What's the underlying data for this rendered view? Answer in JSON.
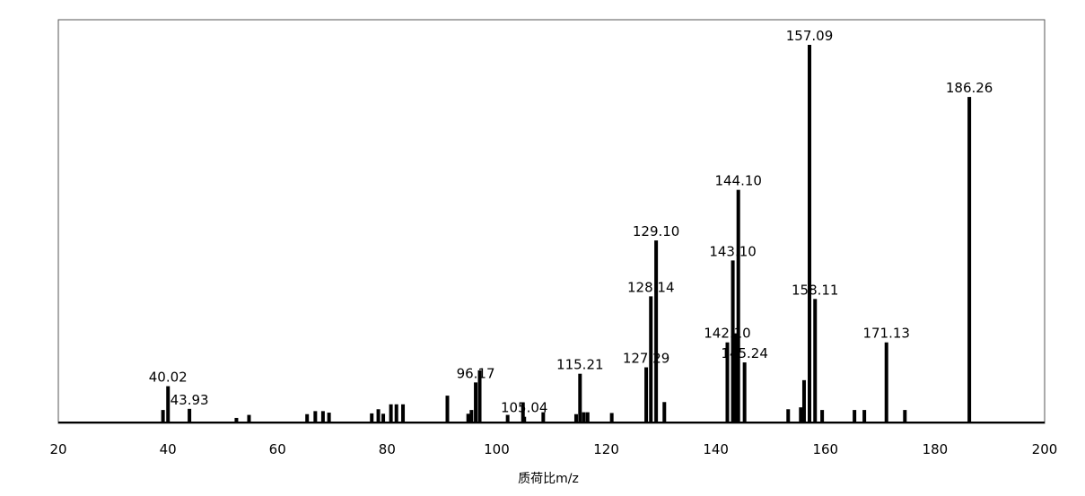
{
  "chart_data": {
    "type": "bar",
    "title": "",
    "xlabel": "质荷比m/z",
    "ylabel": "",
    "xlim": [
      20,
      200
    ],
    "ylim": [
      0,
      100
    ],
    "x_ticks": [
      20,
      40,
      60,
      80,
      100,
      120,
      140,
      160,
      180,
      200
    ],
    "grid": false,
    "legend": "none",
    "bar_color": "#000000",
    "peaks": [
      {
        "mz": 39.1,
        "intensity": 3.3
      },
      {
        "mz": 40.02,
        "intensity": 9.6,
        "label": "40.02"
      },
      {
        "mz": 43.93,
        "intensity": 3.6,
        "label": "43.93"
      },
      {
        "mz": 52.5,
        "intensity": 1.2
      },
      {
        "mz": 54.8,
        "intensity": 2.0
      },
      {
        "mz": 65.4,
        "intensity": 2.2
      },
      {
        "mz": 66.9,
        "intensity": 3.0
      },
      {
        "mz": 68.3,
        "intensity": 3.0
      },
      {
        "mz": 69.4,
        "intensity": 2.6
      },
      {
        "mz": 77.2,
        "intensity": 2.4
      },
      {
        "mz": 78.4,
        "intensity": 3.5
      },
      {
        "mz": 79.3,
        "intensity": 2.3
      },
      {
        "mz": 80.7,
        "intensity": 4.8
      },
      {
        "mz": 81.7,
        "intensity": 4.8
      },
      {
        "mz": 82.9,
        "intensity": 4.8
      },
      {
        "mz": 91.0,
        "intensity": 7.1
      },
      {
        "mz": 94.8,
        "intensity": 2.3
      },
      {
        "mz": 95.4,
        "intensity": 3.3
      },
      {
        "mz": 96.17,
        "intensity": 10.6,
        "label": "96.17"
      },
      {
        "mz": 96.9,
        "intensity": 13.8
      },
      {
        "mz": 102.0,
        "intensity": 2.0
      },
      {
        "mz": 104.8,
        "intensity": 5.3
      },
      {
        "mz": 105.04,
        "intensity": 1.5,
        "label": "105.04"
      },
      {
        "mz": 108.5,
        "intensity": 2.7
      },
      {
        "mz": 114.5,
        "intensity": 2.2
      },
      {
        "mz": 115.21,
        "intensity": 12.9,
        "label": "115.21"
      },
      {
        "mz": 115.9,
        "intensity": 2.7
      },
      {
        "mz": 116.6,
        "intensity": 2.7
      },
      {
        "mz": 121.0,
        "intensity": 2.5
      },
      {
        "mz": 127.29,
        "intensity": 14.6,
        "label": "127.29"
      },
      {
        "mz": 128.14,
        "intensity": 33.4,
        "label": "128.14"
      },
      {
        "mz": 129.1,
        "intensity": 48.2,
        "label": "129.10"
      },
      {
        "mz": 130.6,
        "intensity": 5.4
      },
      {
        "mz": 142.1,
        "intensity": 21.2,
        "label": "142.10"
      },
      {
        "mz": 143.1,
        "intensity": 42.9,
        "label": "143.10"
      },
      {
        "mz": 143.7,
        "intensity": 23.6
      },
      {
        "mz": 144.1,
        "intensity": 61.6,
        "label": "144.10"
      },
      {
        "mz": 145.24,
        "intensity": 15.9,
        "label": "145.24"
      },
      {
        "mz": 153.2,
        "intensity": 3.5
      },
      {
        "mz": 155.5,
        "intensity": 4.0
      },
      {
        "mz": 156.1,
        "intensity": 11.2
      },
      {
        "mz": 157.09,
        "intensity": 100.0,
        "label": "157.09"
      },
      {
        "mz": 158.11,
        "intensity": 32.7,
        "label": "158.11"
      },
      {
        "mz": 159.4,
        "intensity": 3.3
      },
      {
        "mz": 165.3,
        "intensity": 3.3
      },
      {
        "mz": 167.1,
        "intensity": 3.3
      },
      {
        "mz": 171.13,
        "intensity": 21.2,
        "label": "171.13"
      },
      {
        "mz": 174.5,
        "intensity": 3.3
      },
      {
        "mz": 186.26,
        "intensity": 86.2,
        "label": "186.26"
      }
    ]
  }
}
